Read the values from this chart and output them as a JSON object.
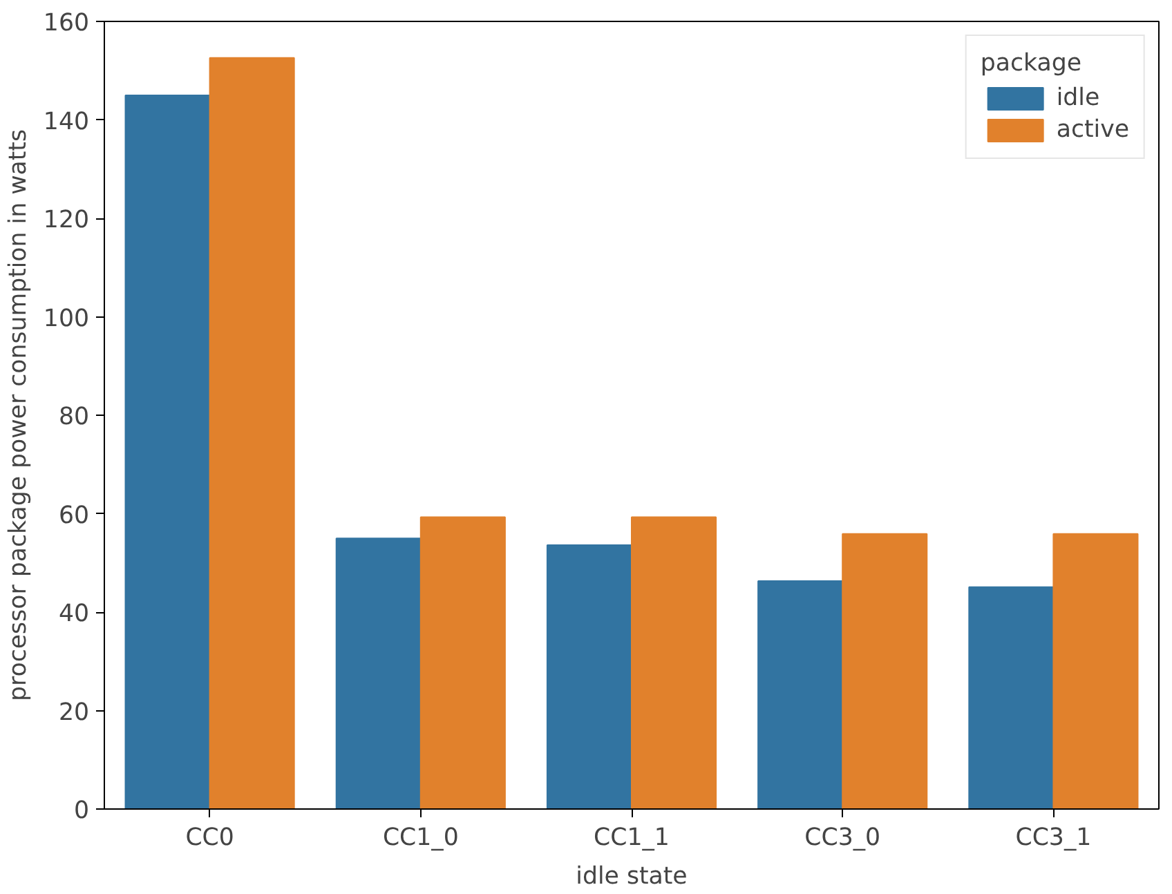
{
  "chart_data": {
    "type": "bar",
    "xlabel": "idle state",
    "ylabel": "processor package power consumption in watts",
    "categories": [
      "CC0",
      "CC1_0",
      "CC1_1",
      "CC3_0",
      "CC3_1"
    ],
    "series": [
      {
        "name": "idle",
        "color": "#3274a1",
        "values": [
          145.0,
          55.0,
          53.6,
          46.3,
          45.1
        ]
      },
      {
        "name": "active",
        "color": "#e1812c",
        "values": [
          152.6,
          59.3,
          59.3,
          55.9,
          55.9
        ]
      }
    ],
    "legend_title": "package",
    "legend": "top right",
    "grid": false,
    "ylim": [
      0,
      160
    ],
    "yticks": [
      0,
      20,
      40,
      60,
      80,
      100,
      120,
      140,
      160
    ]
  }
}
